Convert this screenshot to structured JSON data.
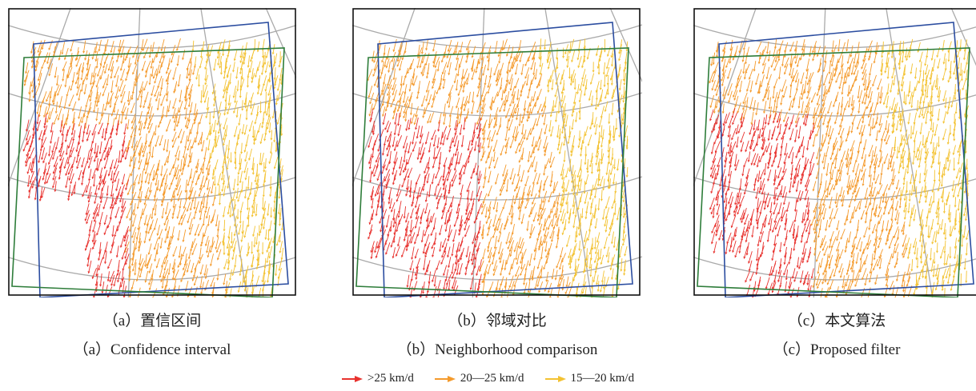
{
  "panels": [
    {
      "caption_zh": "（a）置信区间",
      "caption_en": "（a）Confidence interval"
    },
    {
      "caption_zh": "（b）邻域对比",
      "caption_en": "（b）Neighborhood comparison"
    },
    {
      "caption_zh": "（c）本文算法",
      "caption_en": "（c）Proposed filter"
    }
  ],
  "legend": [
    {
      "label": ">25 km/d",
      "color": "#e8322e"
    },
    {
      "label": "20—25 km/d",
      "color": "#f49a2c"
    },
    {
      "label": "15—20 km/d",
      "color": "#f3c232"
    }
  ]
}
